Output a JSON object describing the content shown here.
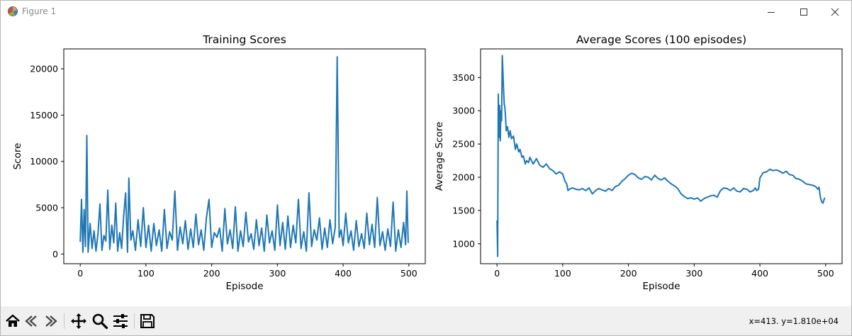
{
  "window": {
    "title": "Figure 1",
    "controls": [
      "minimize-icon",
      "maximize-icon",
      "close-icon"
    ]
  },
  "toolbar": {
    "buttons": [
      {
        "name": "home-icon",
        "tooltip": "Reset original view"
      },
      {
        "name": "back-icon",
        "tooltip": "Back to previous view"
      },
      {
        "name": "forward-icon",
        "tooltip": "Forward to next view"
      },
      {
        "name": "pan-icon",
        "tooltip": "Pan axes"
      },
      {
        "name": "zoom-icon",
        "tooltip": "Zoom to rectangle"
      },
      {
        "name": "configure-subplots-icon",
        "tooltip": "Configure subplots"
      },
      {
        "name": "save-icon",
        "tooltip": "Save the figure"
      }
    ],
    "coordinates": "x=413. y=1.810e+04"
  },
  "chart_data": [
    {
      "type": "line",
      "title": "Training Scores",
      "xlabel": "Episode",
      "ylabel": "Score",
      "xlim": [
        -25,
        525
      ],
      "ylim": [
        -1050,
        22150
      ],
      "xticks": [
        0,
        100,
        200,
        300,
        400,
        500
      ],
      "yticks": [
        0,
        5000,
        10000,
        15000,
        20000
      ],
      "grid": false,
      "color": "#1f77b4",
      "series_note": "noisy per-episode score; baseline ~200-3000 with spikes",
      "x": [
        0,
        2,
        4,
        6,
        8,
        10,
        12,
        15,
        18,
        21,
        24,
        27,
        30,
        33,
        36,
        39,
        42,
        45,
        48,
        51,
        54,
        57,
        60,
        63,
        66,
        69,
        72,
        74,
        77,
        80,
        84,
        88,
        92,
        96,
        100,
        104,
        108,
        112,
        116,
        120,
        124,
        128,
        132,
        136,
        140,
        144,
        148,
        152,
        156,
        160,
        164,
        168,
        172,
        176,
        180,
        184,
        188,
        192,
        196,
        200,
        204,
        208,
        212,
        216,
        220,
        224,
        228,
        232,
        236,
        240,
        244,
        248,
        252,
        256,
        260,
        264,
        268,
        272,
        276,
        280,
        284,
        288,
        292,
        296,
        300,
        304,
        308,
        312,
        316,
        320,
        324,
        328,
        332,
        336,
        340,
        344,
        348,
        352,
        356,
        360,
        364,
        368,
        372,
        376,
        380,
        384,
        388,
        391,
        394,
        397,
        400,
        404,
        408,
        412,
        416,
        420,
        424,
        428,
        432,
        436,
        440,
        444,
        448,
        452,
        456,
        460,
        464,
        468,
        472,
        476,
        480,
        484,
        488,
        492,
        495,
        497,
        499
      ],
      "y": [
        1300,
        5900,
        200,
        4800,
        800,
        12800,
        200,
        3300,
        600,
        2500,
        300,
        2200,
        5400,
        400,
        2000,
        1400,
        6900,
        500,
        3100,
        1200,
        5500,
        300,
        2300,
        600,
        4000,
        6600,
        200,
        8200,
        1500,
        2500,
        400,
        3700,
        800,
        5000,
        700,
        3100,
        300,
        3300,
        900,
        2600,
        300,
        4800,
        600,
        2400,
        1500,
        6800,
        400,
        2900,
        1100,
        3600,
        500,
        2700,
        700,
        4300,
        1000,
        2600,
        400,
        3900,
        5900,
        700,
        2300,
        1800,
        2800,
        300,
        4900,
        1100,
        2600,
        600,
        5100,
        300,
        2500,
        800,
        4500,
        1300,
        2200,
        500,
        3700,
        900,
        2800,
        300,
        4200,
        1200,
        2500,
        400,
        5300,
        900,
        3400,
        500,
        4100,
        700,
        3100,
        1200,
        5900,
        600,
        2400,
        300,
        6600,
        800,
        2600,
        1500,
        3900,
        500,
        2800,
        700,
        3700,
        1100,
        2900,
        21300,
        1800,
        2600,
        900,
        4400,
        1200,
        2500,
        400,
        3600,
        800,
        2200,
        600,
        4400,
        1000,
        3200,
        700,
        6100,
        900,
        2400,
        400,
        2700,
        800,
        5600,
        300,
        2600,
        700,
        3400,
        1000,
        6800,
        1200
      ]
    },
    {
      "type": "line",
      "title": "Average Scores (100 episodes)",
      "xlabel": "Episode",
      "ylabel": "Average Score",
      "xlim": [
        -25,
        525
      ],
      "ylim": [
        700,
        3930
      ],
      "xticks": [
        0,
        100,
        200,
        300,
        400,
        500
      ],
      "yticks": [
        1000,
        1500,
        2000,
        2500,
        3000,
        3500
      ],
      "grid": false,
      "color": "#1f77b4",
      "x": [
        0,
        1,
        2,
        3,
        4,
        5,
        6,
        7,
        8,
        9,
        10,
        11,
        12,
        13,
        14,
        15,
        16,
        18,
        20,
        22,
        25,
        28,
        30,
        33,
        35,
        38,
        40,
        43,
        45,
        48,
        50,
        55,
        60,
        65,
        70,
        75,
        80,
        85,
        90,
        95,
        100,
        103,
        106,
        108,
        110,
        115,
        120,
        125,
        130,
        135,
        140,
        145,
        150,
        155,
        160,
        165,
        170,
        175,
        180,
        185,
        190,
        195,
        200,
        205,
        210,
        215,
        220,
        225,
        230,
        235,
        240,
        245,
        250,
        255,
        260,
        265,
        270,
        275,
        280,
        285,
        290,
        295,
        300,
        305,
        310,
        315,
        320,
        325,
        330,
        335,
        340,
        345,
        350,
        355,
        360,
        365,
        370,
        375,
        380,
        385,
        390,
        393,
        395,
        398,
        400,
        405,
        410,
        415,
        420,
        425,
        430,
        435,
        440,
        445,
        450,
        455,
        460,
        465,
        470,
        475,
        480,
        485,
        488,
        490,
        492,
        494,
        496,
        498,
        499
      ],
      "y": [
        1350,
        810,
        3250,
        2600,
        3080,
        2550,
        3000,
        2850,
        3830,
        3600,
        3300,
        3100,
        3050,
        2900,
        2700,
        2750,
        2760,
        2600,
        2700,
        2580,
        2620,
        2420,
        2500,
        2380,
        2420,
        2300,
        2320,
        2200,
        2250,
        2220,
        2300,
        2200,
        2280,
        2180,
        2150,
        2200,
        2130,
        2100,
        2050,
        2080,
        2050,
        1950,
        1900,
        1800,
        1820,
        1840,
        1820,
        1810,
        1830,
        1800,
        1840,
        1750,
        1800,
        1830,
        1810,
        1790,
        1830,
        1800,
        1860,
        1880,
        1940,
        1980,
        2030,
        2060,
        2040,
        1990,
        1970,
        2010,
        2000,
        1960,
        2030,
        1980,
        1960,
        1990,
        1940,
        1900,
        1870,
        1830,
        1750,
        1710,
        1680,
        1690,
        1670,
        1690,
        1640,
        1680,
        1700,
        1720,
        1730,
        1700,
        1800,
        1840,
        1830,
        1800,
        1840,
        1790,
        1780,
        1830,
        1820,
        1780,
        1800,
        1840,
        1800,
        1820,
        1990,
        2070,
        2080,
        2120,
        2100,
        2110,
        2090,
        2060,
        2090,
        2040,
        2030,
        1980,
        1970,
        1940,
        1900,
        1890,
        1880,
        1860,
        1820,
        1850,
        1700,
        1630,
        1610,
        1680,
        1690
      ]
    }
  ]
}
